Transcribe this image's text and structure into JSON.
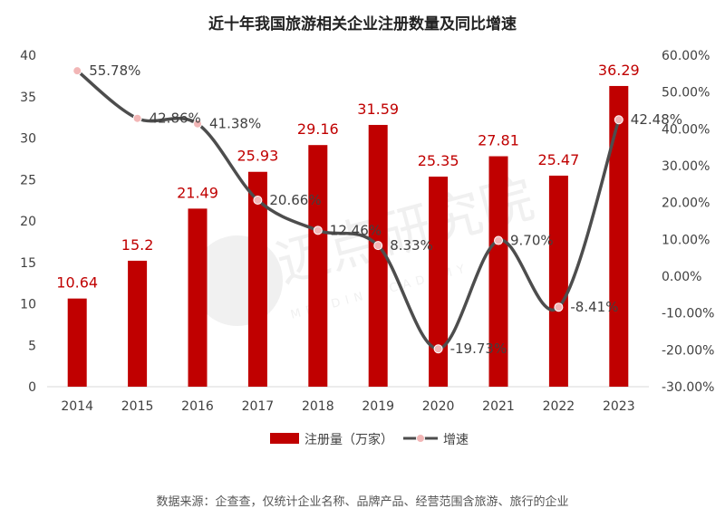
{
  "chart_data": {
    "type": "bar+line",
    "title": "近十年我国旅游相关企业注册数量及同比增速",
    "categories": [
      "2014",
      "2015",
      "2016",
      "2017",
      "2018",
      "2019",
      "2020",
      "2021",
      "2022",
      "2023"
    ],
    "series": [
      {
        "name": "注册量（万家）",
        "type": "bar",
        "axis": "left",
        "values": [
          10.64,
          15.2,
          21.49,
          25.93,
          29.16,
          31.59,
          25.35,
          27.81,
          25.47,
          36.29
        ],
        "labels": [
          "10.64",
          "15.2",
          "21.49",
          "25.93",
          "29.16",
          "31.59",
          "25.35",
          "27.81",
          "25.47",
          "36.29"
        ]
      },
      {
        "name": "增速",
        "type": "line",
        "axis": "right",
        "values": [
          55.78,
          42.86,
          41.38,
          20.66,
          12.46,
          8.33,
          -19.73,
          9.7,
          -8.41,
          42.48
        ],
        "labels": [
          "55.78%",
          "42.86%",
          "41.38%",
          "20.66%",
          "12.46%",
          "8.33%",
          "-19.73%",
          "9.70%",
          "-8.41%",
          "42.48%"
        ]
      }
    ],
    "y_left": {
      "min": 0,
      "max": 40,
      "ticks": [
        "0",
        "5",
        "10",
        "15",
        "20",
        "25",
        "30",
        "35",
        "40"
      ]
    },
    "y_right": {
      "min": -30,
      "max": 60,
      "ticks": [
        "-30.00%",
        "-20.00%",
        "-10.00%",
        "0.00%",
        "10.00%",
        "20.00%",
        "30.00%",
        "40.00%",
        "50.00%",
        "60.00%"
      ]
    },
    "legend": "bottom-center",
    "source": "数据来源：企查查，仅统计企业名称、品牌产品、经营范围含旅游、旅行的企业"
  },
  "colors": {
    "bar": "#c00000",
    "line": "#4d4d4d",
    "marker": "#f2b6b6",
    "bar_label": "#c00000"
  },
  "watermark": {
    "text_cn": "迈点研究院",
    "text_en": "MEADIN ACADEMY"
  }
}
